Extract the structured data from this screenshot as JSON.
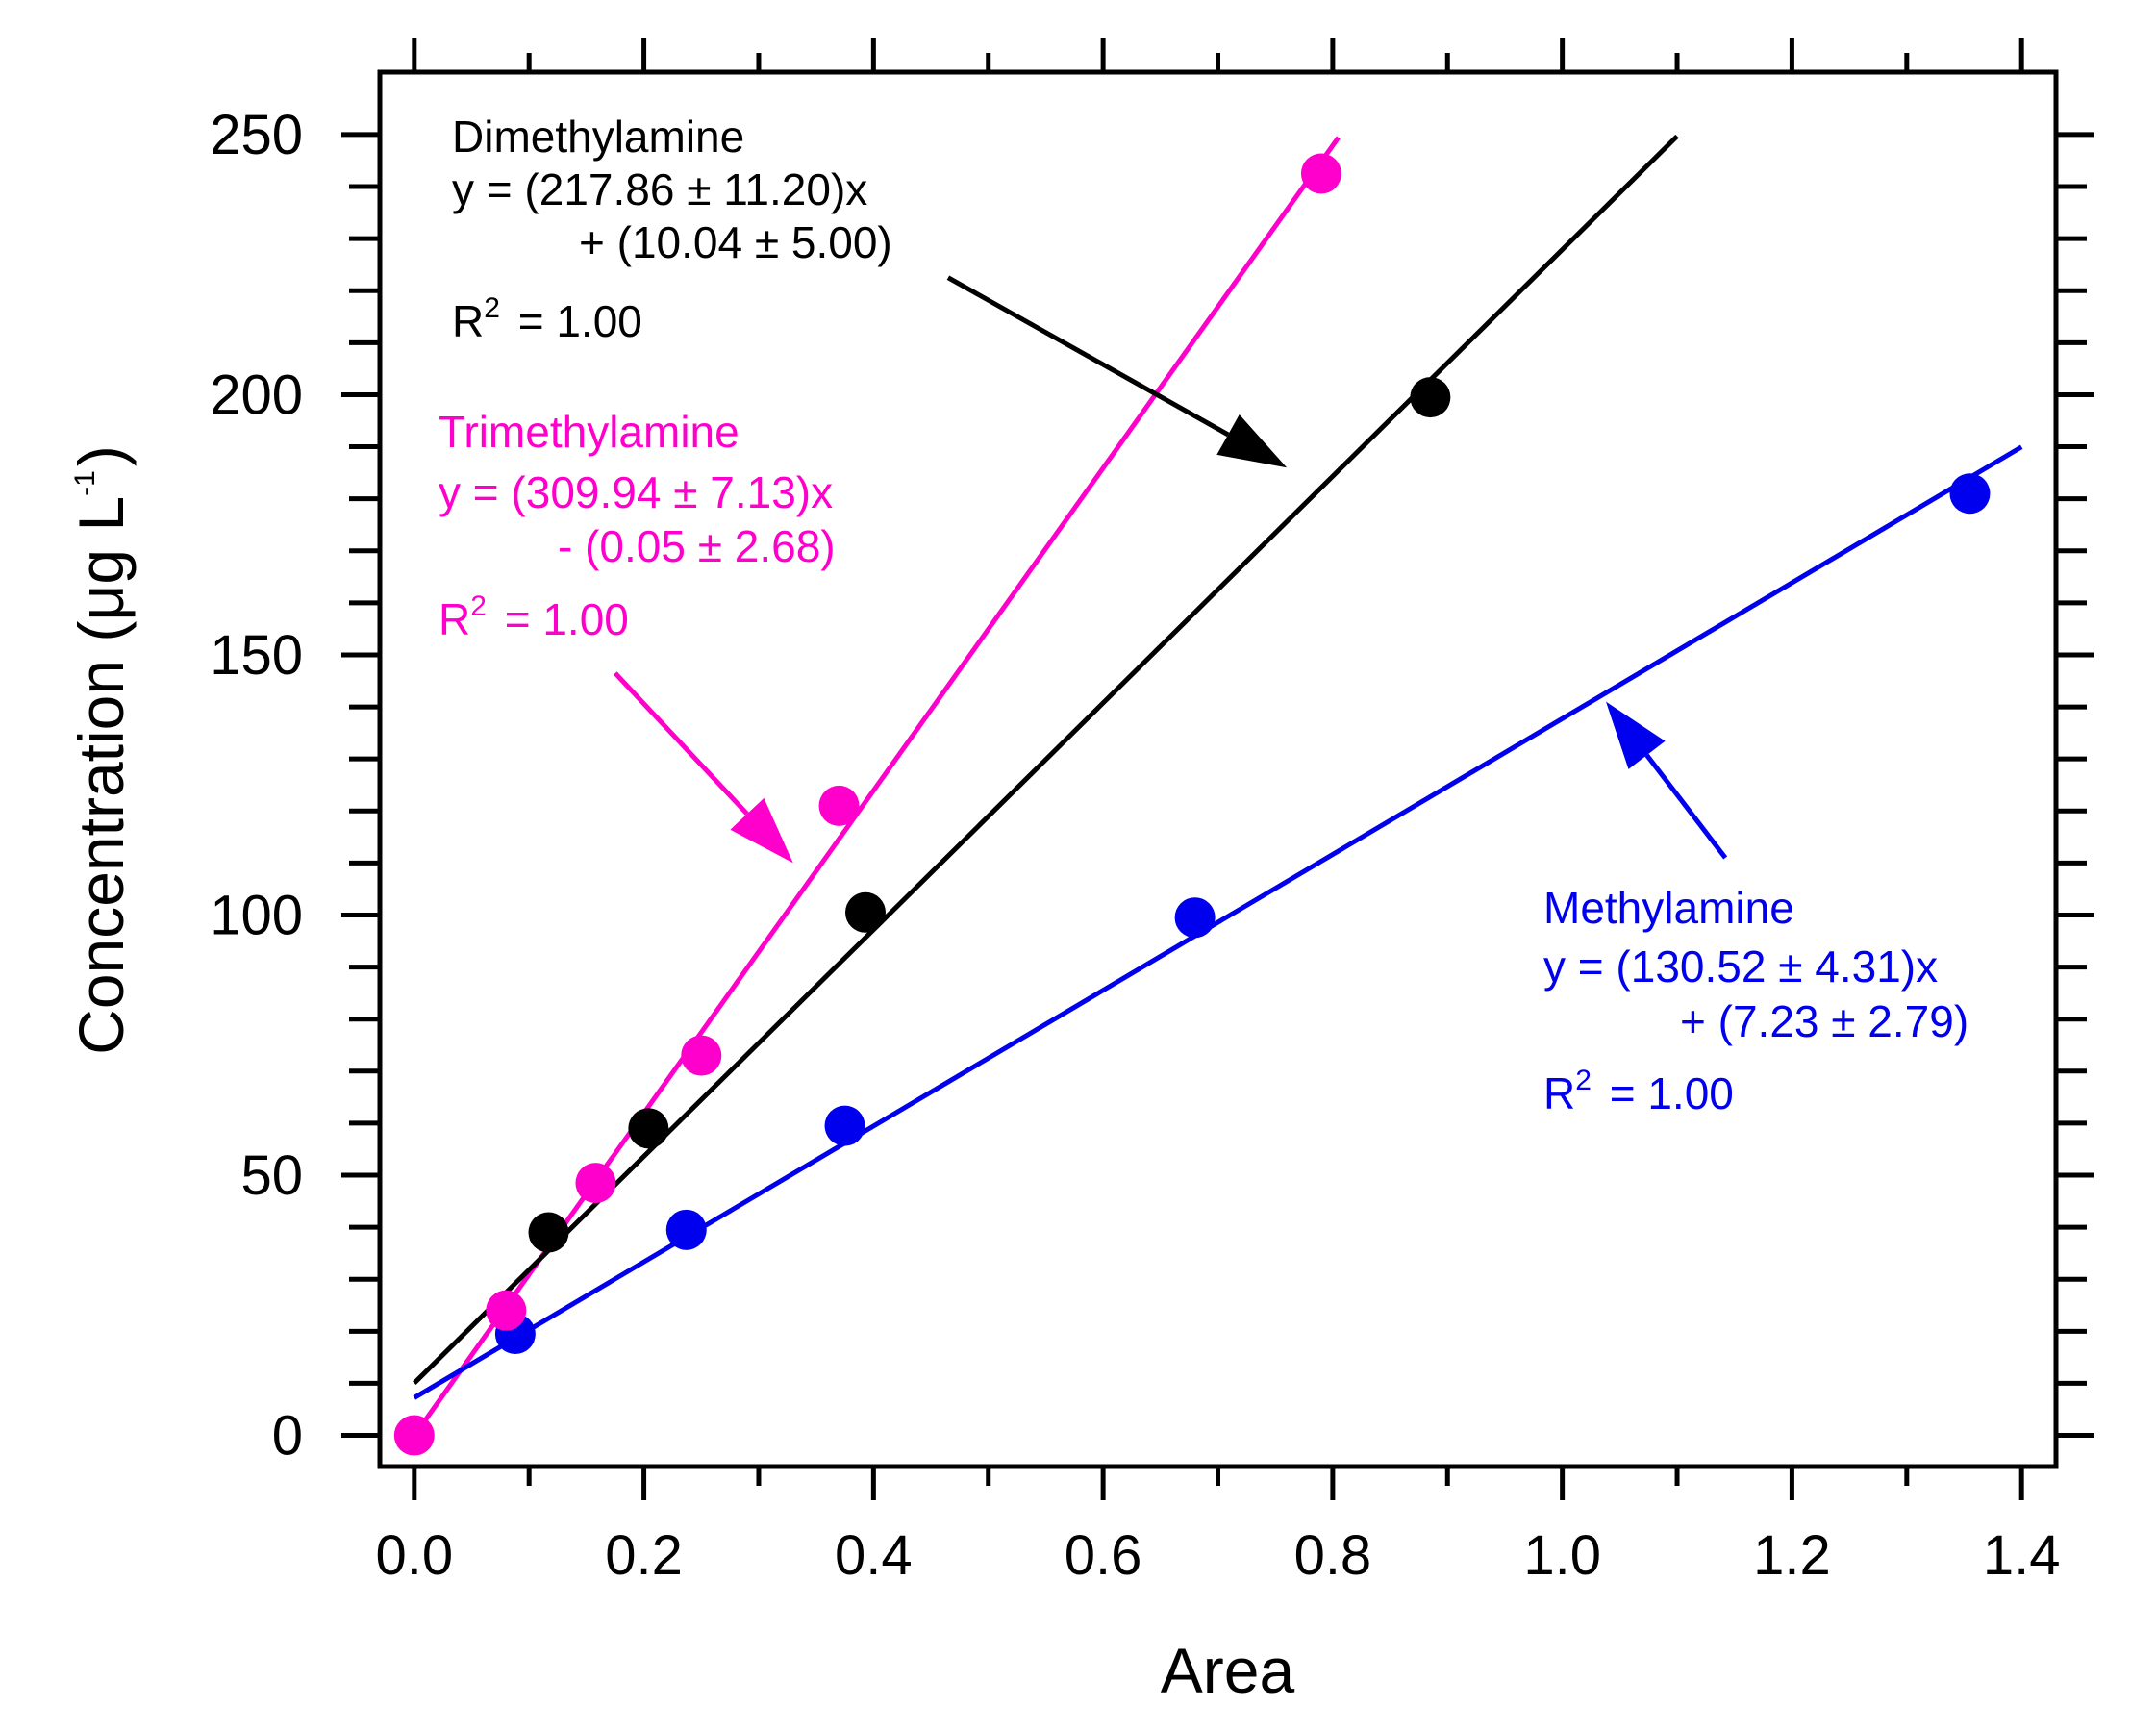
{
  "chart_data": {
    "type": "scatter",
    "xlabel": "Area",
    "ylabel": "Concentration (μg L",
    "ylabel_unit_sup": "-1",
    "ylabel_close": ")",
    "xlim": [
      -0.03,
      1.43
    ],
    "ylim": [
      -6,
      262
    ],
    "x_ticks": [
      {
        "value": 0.0,
        "label": "0.0"
      },
      {
        "value": 0.2,
        "label": "0.2"
      },
      {
        "value": 0.4,
        "label": "0.4"
      },
      {
        "value": 0.6,
        "label": "0.6"
      },
      {
        "value": 0.8,
        "label": "0.8"
      },
      {
        "value": 1.0,
        "label": "1.0"
      },
      {
        "value": 1.2,
        "label": "1.2"
      },
      {
        "value": 1.4,
        "label": "1.4"
      }
    ],
    "x_minor_step": 0.1,
    "y_ticks": [
      {
        "value": 0,
        "label": "0"
      },
      {
        "value": 50,
        "label": "50"
      },
      {
        "value": 100,
        "label": "100"
      },
      {
        "value": 150,
        "label": "150"
      },
      {
        "value": 200,
        "label": "200"
      },
      {
        "value": 250,
        "label": "250"
      }
    ],
    "y_minor_step": 10,
    "grid": false,
    "series": [
      {
        "name": "Trimethylamine",
        "color": "#ff00cc",
        "points": [
          [
            0.0,
            0
          ],
          [
            0.08,
            24
          ],
          [
            0.158,
            48.5
          ],
          [
            0.25,
            73
          ],
          [
            0.37,
            121
          ],
          [
            0.79,
            242.5
          ]
        ],
        "fit": {
          "slope": 309.94,
          "intercept": -0.05,
          "x_range": [
            0.0,
            0.805
          ]
        },
        "annotation": {
          "name": "Trimethylamine",
          "equation_line1": "y = (309.94 ± 7.13)x",
          "equation_line2": "- (0.05 ± 2.68)",
          "r2_prefix": "R",
          "r2_sup": "2",
          "r2_value": " = 1.00"
        }
      },
      {
        "name": "Dimethylamine",
        "color": "#000000",
        "points": [
          [
            0.117,
            39
          ],
          [
            0.204,
            59
          ],
          [
            0.393,
            100.5
          ],
          [
            0.885,
            199.5
          ]
        ],
        "fit": {
          "slope": 217.86,
          "intercept": 10.04,
          "x_range": [
            0.0,
            1.1
          ]
        },
        "annotation": {
          "name": "Dimethylamine",
          "equation_line1": "y = (217.86 ± 11.20)x",
          "equation_line2": "+ (10.04 ± 5.00)",
          "r2_prefix": "R",
          "r2_sup": "2",
          "r2_value": " = 1.00"
        }
      },
      {
        "name": "Methylamine",
        "color": "#0000ee",
        "points": [
          [
            0.088,
            19.5
          ],
          [
            0.237,
            39.5
          ],
          [
            0.375,
            59.5
          ],
          [
            0.68,
            99.5
          ],
          [
            1.355,
            181
          ]
        ],
        "fit": {
          "slope": 130.52,
          "intercept": 7.23,
          "x_range": [
            0.0,
            1.4
          ]
        },
        "annotation": {
          "name": "Methylamine",
          "equation_line1": "y = (130.52 ± 4.31)x",
          "equation_line2": "+ (7.23 ± 2.79)",
          "r2_prefix": "R",
          "r2_sup": "2",
          "r2_value": " = 1.00"
        }
      }
    ],
    "arrows": [
      {
        "series": "Dimethylamine",
        "from": [
          0.465,
          222.5
        ],
        "to": [
          0.76,
          186
        ]
      },
      {
        "series": "Trimethylamine",
        "from": [
          0.175,
          146.5
        ],
        "to": [
          0.33,
          110
        ]
      },
      {
        "series": "Methylamine",
        "from": [
          1.142,
          111
        ],
        "to": [
          1.038,
          141
        ]
      }
    ]
  }
}
